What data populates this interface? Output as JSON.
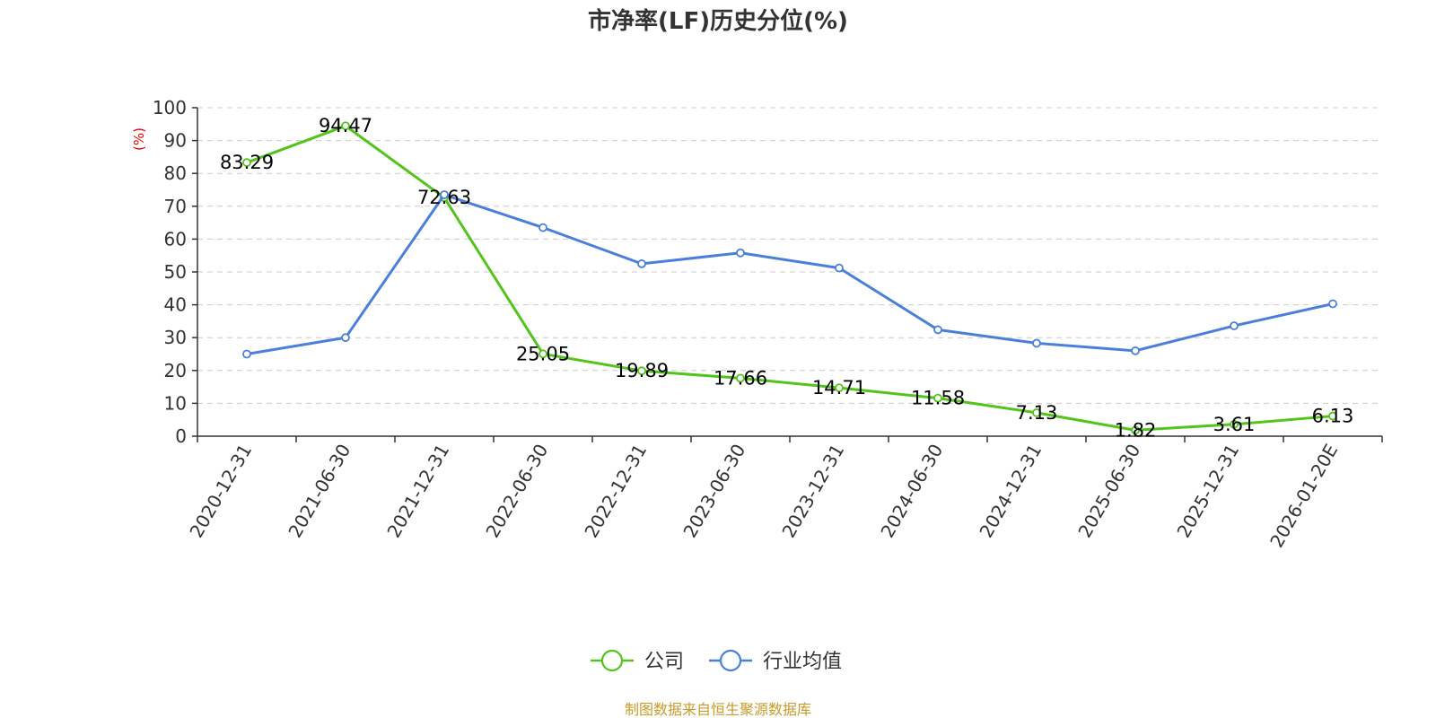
{
  "chart_data": {
    "type": "line",
    "title": "市净率(LF)历史分位(%)",
    "ylabel": "(%)",
    "ylim": [
      0,
      100
    ],
    "yticks": [
      0,
      10,
      20,
      30,
      40,
      50,
      60,
      70,
      80,
      90,
      100
    ],
    "grid": true,
    "legend_position": "bottom",
    "categories": [
      "2020-12-31",
      "2021-06-30",
      "2021-12-31",
      "2022-06-30",
      "2022-12-31",
      "2023-06-30",
      "2023-12-31",
      "2024-06-30",
      "2024-12-31",
      "2025-06-30",
      "2025-12-31",
      "2026-01-20E"
    ],
    "series": [
      {
        "name": "公司",
        "color": "#52c41a",
        "values": [
          83.29,
          94.47,
          72.63,
          25.05,
          19.89,
          17.66,
          14.71,
          11.58,
          7.13,
          1.82,
          3.61,
          6.13
        ],
        "show_labels": true
      },
      {
        "name": "行业均值",
        "color": "#4a7fdc",
        "values": [
          25.0,
          30.0,
          73.5,
          63.5,
          52.5,
          55.8,
          51.2,
          32.4,
          28.3,
          26.0,
          33.6,
          40.3
        ],
        "show_labels": false
      }
    ]
  },
  "source": "制图数据来自恒生聚源数据库",
  "colors": {
    "unit_label": "#e00000",
    "source_text": "#c89a2a",
    "grid": "#cccccc",
    "axis": "#333333"
  }
}
